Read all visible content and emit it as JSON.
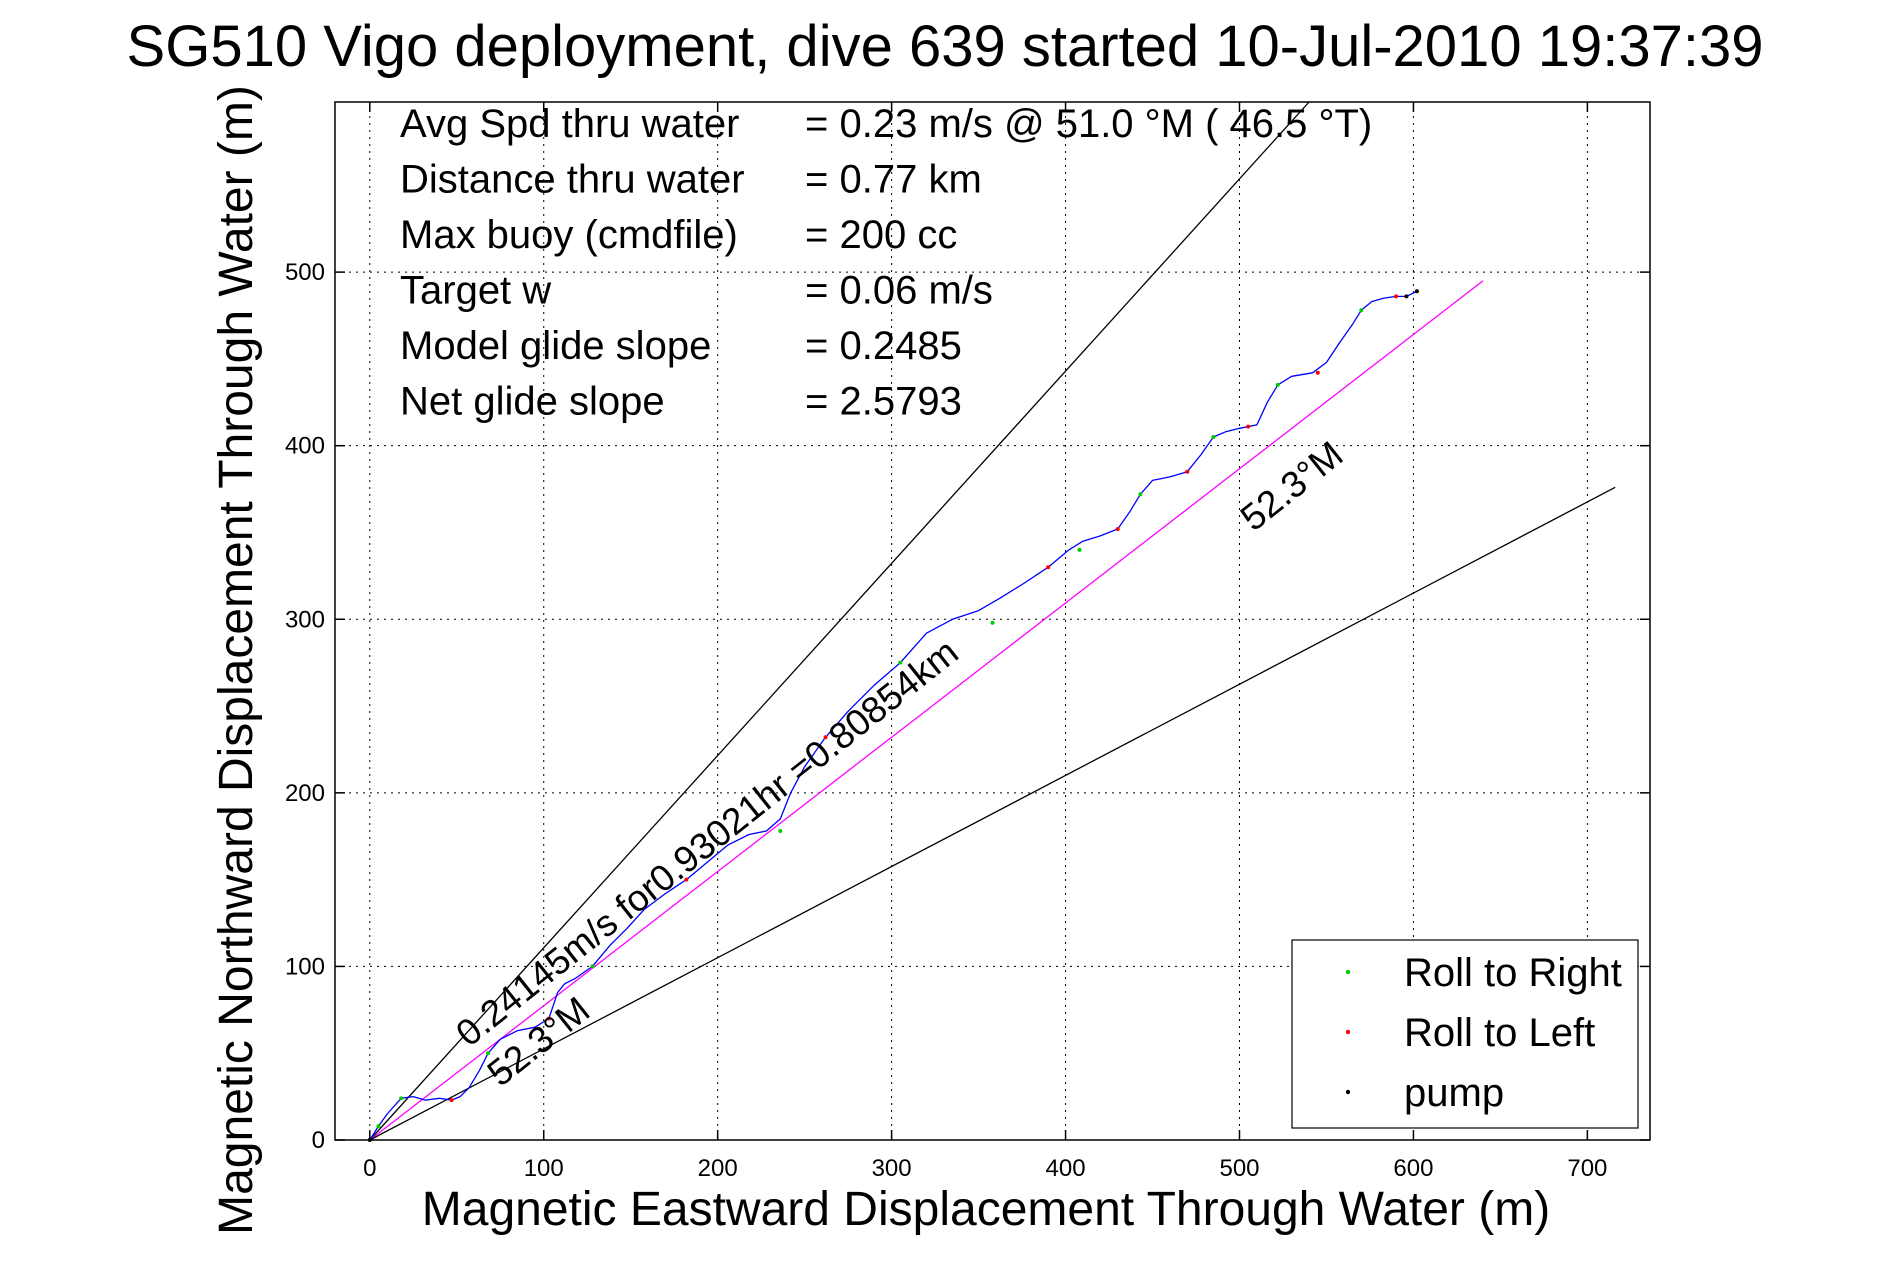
{
  "chart_data": {
    "type": "line",
    "title": "SG510 Vigo deployment, dive 639 started 10-Jul-2010 19:37:39",
    "xlabel": "Magnetic Eastward Displacement Through Water (m)",
    "ylabel": "Magnetic Northward Displacement Through Water (m)",
    "xlim": [
      -20,
      736
    ],
    "ylim": [
      0,
      598
    ],
    "xticks": [
      0,
      100,
      200,
      300,
      400,
      500,
      600,
      700
    ],
    "yticks": [
      0,
      100,
      200,
      300,
      400,
      500
    ],
    "grid": true,
    "info_lines": [
      {
        "label": "Avg Spd thru water",
        "value": "=  0.23 m/s @  51.0 °M ( 46.5 °T)"
      },
      {
        "label": "Distance thru water",
        "value": "=  0.77 km"
      },
      {
        "label": "Max buoy (cmdfile)",
        "value": "= 200 cc"
      },
      {
        "label": "Target w",
        "value": "= 0.06 m/s"
      },
      {
        "label": "Model glide slope",
        "value": "= 0.2485"
      },
      {
        "label": "Net glide slope",
        "value": "= 2.5793"
      }
    ],
    "annotations": [
      {
        "text": "0.24145m/s for0.93021hr =0.80854km",
        "x": 57,
        "y": 53,
        "angle_deg": 38.5
      },
      {
        "text": "52.3°M",
        "x": 75,
        "y": 30,
        "angle_deg": 38.5
      },
      {
        "text": "52.3°M",
        "x": 508,
        "y": 350,
        "angle_deg": 38.5
      }
    ],
    "reference_lines": [
      {
        "name": "upper bound",
        "color": "#000000",
        "x": [
          0,
          540
        ],
        "y": [
          0,
          598
        ]
      },
      {
        "name": "heading",
        "color": "#ff00ff",
        "x": [
          0,
          640
        ],
        "y": [
          0,
          495
        ]
      },
      {
        "name": "lower bound",
        "color": "#000000",
        "x": [
          0,
          716
        ],
        "y": [
          0,
          376
        ]
      }
    ],
    "track": {
      "color": "#0000ff",
      "x": [
        0,
        5,
        10,
        18,
        25,
        32,
        40,
        47,
        52,
        57,
        63,
        68,
        75,
        85,
        95,
        103,
        108,
        112,
        118,
        128,
        138,
        148,
        158,
        170,
        182,
        194,
        206,
        218,
        228,
        236,
        242,
        250,
        262,
        275,
        290,
        305,
        320,
        335,
        350,
        362,
        375,
        390,
        402,
        410,
        420,
        430,
        437,
        443,
        450,
        460,
        470,
        478,
        485,
        492,
        500,
        510,
        516,
        522,
        530,
        542,
        550,
        558,
        565,
        570,
        576,
        583,
        590,
        596,
        602
      ],
      "y": [
        0,
        8,
        15,
        24,
        25,
        23,
        24,
        23,
        25,
        30,
        40,
        50,
        58,
        63,
        65,
        70,
        85,
        90,
        93,
        100,
        112,
        122,
        133,
        142,
        150,
        160,
        170,
        176,
        178,
        185,
        200,
        215,
        232,
        247,
        262,
        275,
        292,
        300,
        305,
        312,
        320,
        330,
        340,
        345,
        348,
        352,
        362,
        372,
        380,
        382,
        385,
        395,
        405,
        408,
        410,
        412,
        425,
        435,
        440,
        442,
        448,
        460,
        470,
        478,
        483,
        485,
        486,
        486,
        489
      ]
    },
    "markers": {
      "Roll to Right": {
        "color": "#00cc00",
        "x": [
          5,
          18,
          68,
          128,
          236,
          305,
          358,
          408,
          443,
          485,
          522,
          570
        ],
        "y": [
          8,
          24,
          50,
          100,
          178,
          275,
          298,
          340,
          372,
          405,
          435,
          478
        ]
      },
      "Roll to Left": {
        "color": "#ff0000",
        "x": [
          47,
          103,
          182,
          262,
          390,
          430,
          470,
          505,
          545,
          590
        ],
        "y": [
          23,
          70,
          150,
          232,
          330,
          352,
          385,
          411,
          442,
          486
        ]
      },
      "pump": {
        "color": "#000000",
        "x": [
          0,
          596,
          602
        ],
        "y": [
          0,
          486,
          489
        ]
      }
    },
    "legend": {
      "placement": "bottom-right",
      "entries": [
        {
          "label": "Roll to Right",
          "color": "#00cc00"
        },
        {
          "label": "Roll to Left",
          "color": "#ff0000"
        },
        {
          "label": "pump",
          "color": "#000000"
        }
      ]
    }
  }
}
